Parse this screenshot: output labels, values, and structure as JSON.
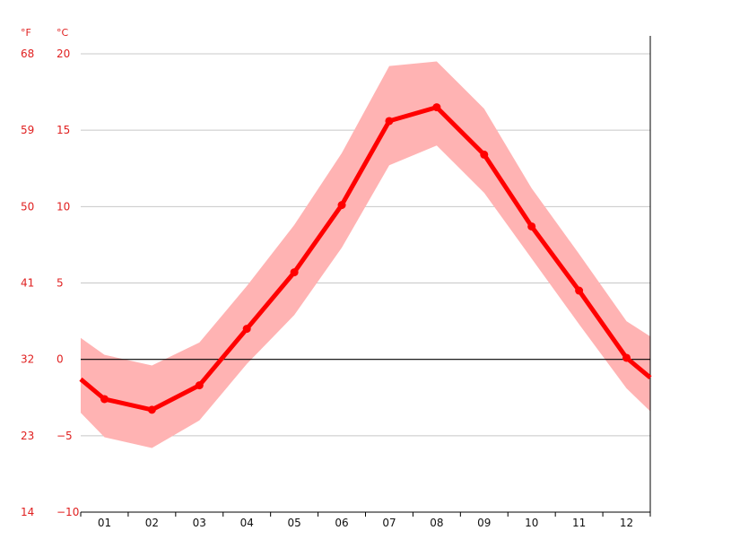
{
  "chart_data": {
    "type": "line",
    "categories": [
      "01",
      "02",
      "03",
      "04",
      "05",
      "06",
      "07",
      "08",
      "09",
      "10",
      "11",
      "12"
    ],
    "series": [
      {
        "values": [
          -2.6,
          -3.3,
          -1.7,
          2.0,
          5.7,
          10.1,
          15.6,
          16.5,
          13.4,
          8.7,
          4.5,
          0.1
        ]
      }
    ],
    "band": {
      "low": [
        -5.1,
        -5.8,
        -4.0,
        -0.3,
        2.9,
        7.3,
        12.7,
        14.0,
        10.9,
        6.6,
        2.3,
        -1.9
      ],
      "high": [
        0.3,
        -0.4,
        1.1,
        4.8,
        8.8,
        13.5,
        19.2,
        19.5,
        16.4,
        11.2,
        6.9,
        2.5
      ],
      "edge_left": {
        "low": -3.5,
        "mid": -1.3,
        "high": 1.4
      },
      "edge_right": {
        "low": -3.4,
        "mid": -1.2,
        "high": 1.5
      }
    },
    "y_unit_left": "°F",
    "y_unit_right": "°C",
    "y_ticks_c": [
      "20",
      "15",
      "10",
      "5",
      "0",
      "−5",
      "−10"
    ],
    "y_ticks_f": [
      "68",
      "59",
      "50",
      "41",
      "32",
      "23",
      "14"
    ],
    "ylim": [
      -10,
      20
    ],
    "grid": true,
    "colors": {
      "line": "#ff0000",
      "band": "#ffb3b3",
      "grid": "#c8c8c8",
      "zero": "#000000",
      "tick_text": "#e02020"
    }
  }
}
